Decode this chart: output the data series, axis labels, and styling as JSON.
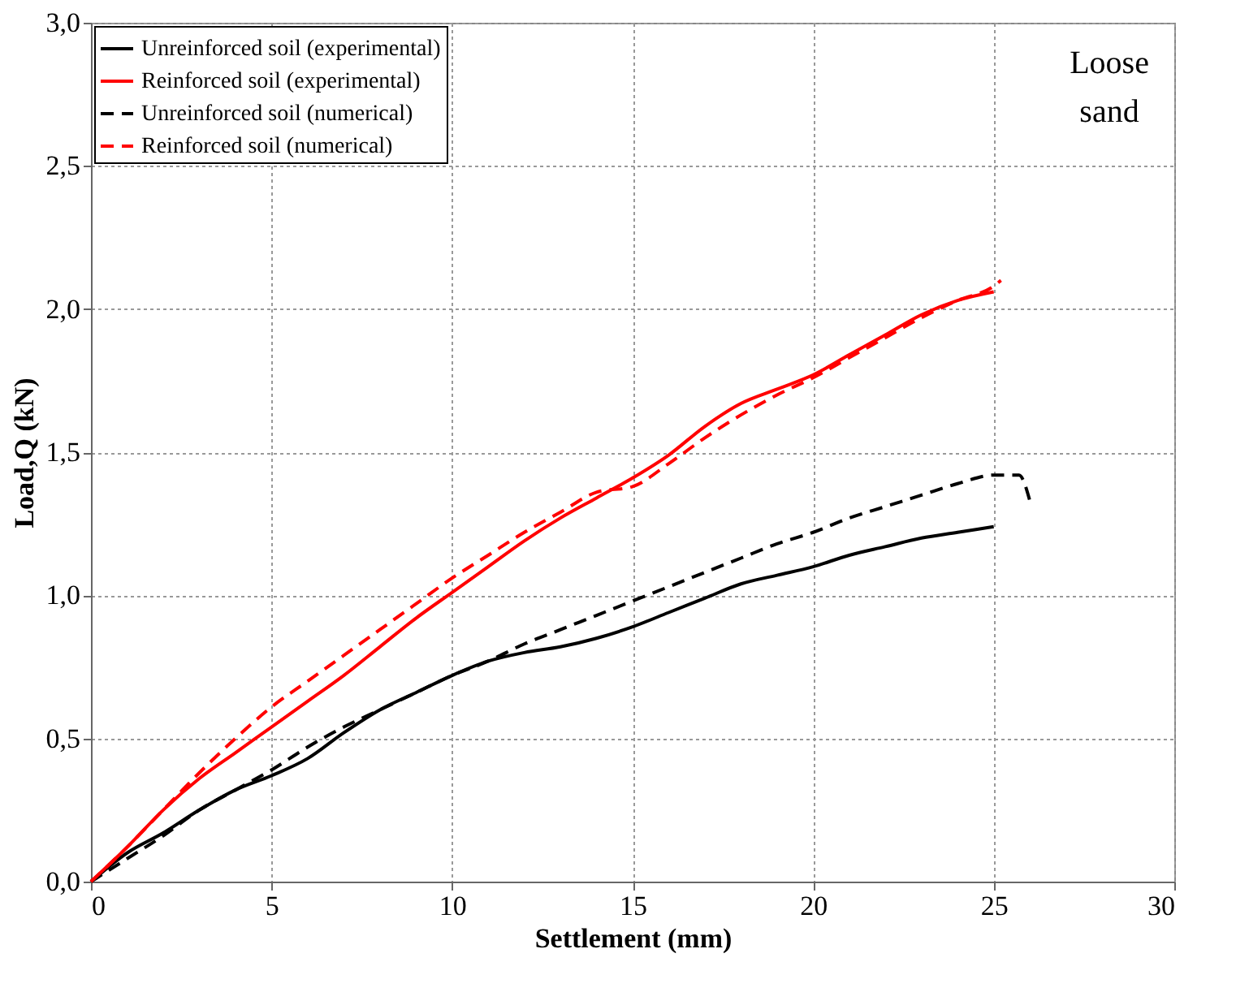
{
  "chart_data": {
    "type": "line",
    "xlabel": "Settlement (mm)",
    "ylabel": "Load,Q (kN)",
    "xlim": [
      0,
      30
    ],
    "xticks": [
      0,
      5,
      10,
      15,
      20,
      25,
      30
    ],
    "ylim": [
      0,
      3
    ],
    "yticks": [
      {
        "value": 0,
        "label": "0,0"
      },
      {
        "value": 0.5,
        "label": "0,5"
      },
      {
        "value": 1,
        "label": "1,0"
      },
      {
        "value": 1.5,
        "label": "1,5"
      },
      {
        "value": 2,
        "label": "2,0"
      },
      {
        "value": 2.5,
        "label": "2,5"
      },
      {
        "value": 3,
        "label": "3,0"
      }
    ],
    "grid": true,
    "legend": "top left",
    "annotations": [
      "Loose sand"
    ],
    "series": [
      {
        "name": "Unreinforced soil (experimental)",
        "color": "#000000",
        "line_style": "solid",
        "x": [
          0,
          1,
          2,
          3,
          4,
          5,
          6,
          7,
          8,
          9,
          10,
          11,
          12,
          13,
          14,
          15,
          16,
          17,
          18,
          19,
          20,
          21,
          22,
          23,
          24,
          25
        ],
        "values": [
          0,
          0.1,
          0.17,
          0.25,
          0.32,
          0.37,
          0.43,
          0.52,
          0.6,
          0.66,
          0.72,
          0.77,
          0.8,
          0.82,
          0.85,
          0.89,
          0.94,
          0.99,
          1.04,
          1.07,
          1.1,
          1.14,
          1.17,
          1.2,
          1.22,
          1.24
        ]
      },
      {
        "name": "Reinforced soil (experimental)",
        "color": "#ff0000",
        "line_style": "solid",
        "x": [
          0,
          1,
          2,
          3,
          4,
          5,
          6,
          7,
          8,
          9,
          10,
          11,
          12,
          13,
          14,
          15,
          16,
          17,
          18,
          19,
          20,
          21,
          22,
          23,
          24,
          25
        ],
        "values": [
          0,
          0.12,
          0.25,
          0.36,
          0.45,
          0.54,
          0.63,
          0.72,
          0.82,
          0.92,
          1.01,
          1.1,
          1.19,
          1.27,
          1.34,
          1.41,
          1.49,
          1.59,
          1.67,
          1.72,
          1.77,
          1.84,
          1.91,
          1.98,
          2.03,
          2.06
        ]
      },
      {
        "name": "Unreinforced soil (numerical)",
        "color": "#000000",
        "line_style": "dashed",
        "x": [
          0,
          1,
          2,
          3,
          4,
          5,
          6,
          7,
          8,
          9,
          10,
          11,
          12,
          13,
          14,
          15,
          16,
          17,
          18,
          19,
          20,
          21,
          22,
          23,
          24,
          25,
          25.7,
          26
        ],
        "values": [
          0,
          0.08,
          0.16,
          0.25,
          0.32,
          0.39,
          0.47,
          0.54,
          0.6,
          0.66,
          0.72,
          0.77,
          0.83,
          0.88,
          0.93,
          0.98,
          1.03,
          1.08,
          1.13,
          1.18,
          1.22,
          1.27,
          1.31,
          1.35,
          1.39,
          1.42,
          1.42,
          1.33
        ]
      },
      {
        "name": "Reinforced soil (numerical)",
        "color": "#ff0000",
        "line_style": "dashed",
        "x": [
          0,
          1,
          2,
          3,
          4,
          5,
          6,
          7,
          8,
          9,
          10,
          11,
          12,
          13,
          14,
          15,
          16,
          17,
          18,
          19,
          20,
          21,
          22,
          23,
          24,
          25,
          25.2
        ],
        "values": [
          0,
          0.12,
          0.25,
          0.38,
          0.5,
          0.61,
          0.7,
          0.79,
          0.88,
          0.97,
          1.06,
          1.14,
          1.22,
          1.29,
          1.36,
          1.38,
          1.46,
          1.55,
          1.63,
          1.7,
          1.76,
          1.83,
          1.9,
          1.97,
          2.03,
          2.08,
          2.1
        ]
      }
    ]
  }
}
